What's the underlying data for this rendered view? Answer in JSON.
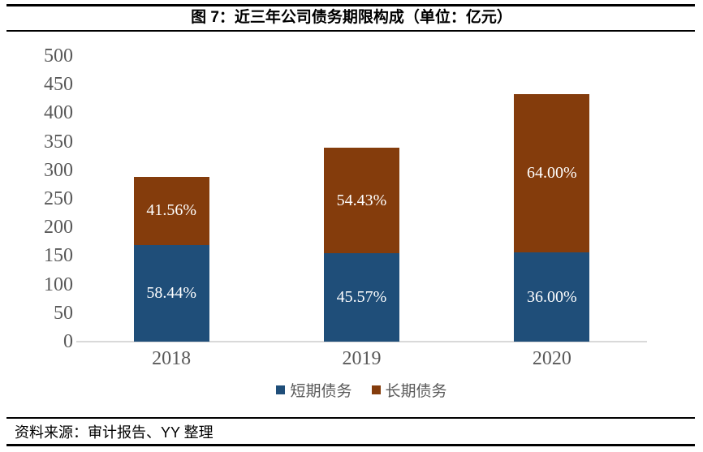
{
  "header": {
    "title": "图 7：近三年公司债务期限构成（单位：亿元）"
  },
  "footer": {
    "source": "资料来源：审计报告、YY 整理"
  },
  "chart_data": {
    "type": "bar",
    "stacked": true,
    "unit": "亿元",
    "title": "图 7：近三年公司债务期限构成（单位：亿元）",
    "categories": [
      "2018",
      "2019",
      "2020"
    ],
    "series": [
      {
        "name": "短期债务",
        "color": "#1F4E79",
        "values": [
          168.9,
          154.5,
          155.9
        ],
        "percent_labels": [
          "58.44%",
          "45.57%",
          "36.00%"
        ]
      },
      {
        "name": "长期债务",
        "color": "#843C0C",
        "values": [
          120.1,
          184.5,
          277.1
        ],
        "percent_labels": [
          "41.56%",
          "54.43%",
          "64.00%"
        ]
      }
    ],
    "totals": [
      289,
      339,
      433
    ],
    "ylim": [
      0,
      500
    ],
    "yticks": [
      0,
      50,
      100,
      150,
      200,
      250,
      300,
      350,
      400,
      450,
      500
    ],
    "grid": false,
    "legend_position": "bottom",
    "xlabel": "",
    "ylabel": "",
    "colors": {
      "axis_line": "#D9D9D9",
      "tick_label": "#595959",
      "bar_value_label": "#FFFFFF",
      "rule": "#000000"
    }
  }
}
